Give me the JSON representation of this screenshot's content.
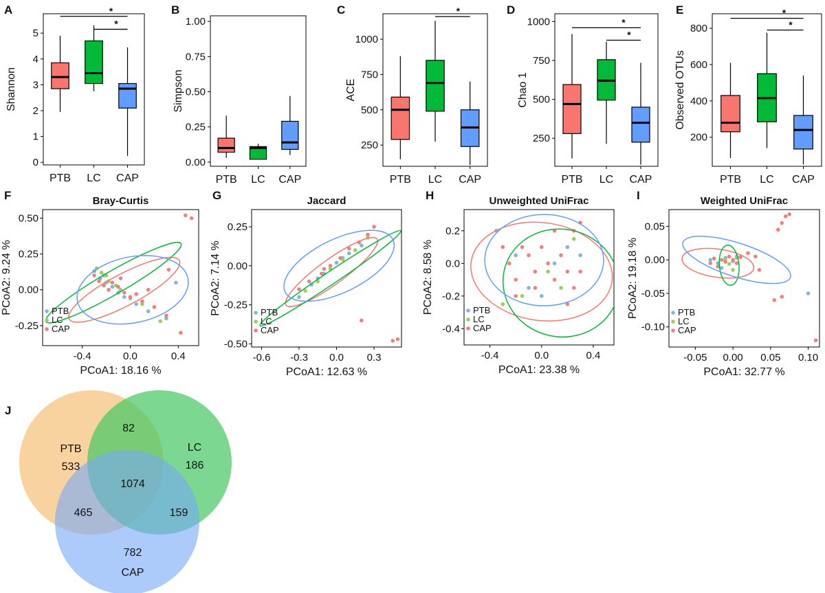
{
  "colors": {
    "PTB": "#f8766d",
    "LC": "#00ba38",
    "CAP": "#619cff",
    "PTB_point": "#7fb8d8",
    "LC_point": "#9ccf5a",
    "CAP_point": "#f08080",
    "venn_PTB": "#f6c888",
    "venn_LC": "#45c862",
    "venn_CAP": "#76a8f6"
  },
  "chart_data": [
    {
      "panel": "A",
      "type": "box",
      "title": "",
      "ylabel": "Shannon",
      "categories": [
        "PTB",
        "LC",
        "CAP"
      ],
      "ylim": [
        -0.1,
        5.75
      ],
      "yticks": [
        0,
        1,
        2,
        3,
        4,
        5
      ],
      "ytick_labels": [
        "0",
        "1",
        "2",
        "3",
        "4",
        "5"
      ],
      "boxes": [
        {
          "group": "PTB",
          "min": 1.95,
          "q1": 2.85,
          "median": 3.3,
          "q3": 3.85,
          "max": 4.9
        },
        {
          "group": "LC",
          "min": 2.75,
          "q1": 3.05,
          "median": 3.45,
          "q3": 4.7,
          "max": 5.3
        },
        {
          "group": "CAP",
          "min": 0.25,
          "q1": 2.1,
          "median": 2.85,
          "q3": 3.05,
          "max": 4.45
        }
      ],
      "significance": [
        {
          "from": "PTB",
          "to": "CAP",
          "label": "*",
          "y": 5.65
        },
        {
          "from": "LC",
          "to": "CAP",
          "label": "*",
          "y": 5.15
        }
      ]
    },
    {
      "panel": "B",
      "type": "box",
      "title": "",
      "ylabel": "Simpson",
      "categories": [
        "PTB",
        "LC",
        "CAP"
      ],
      "ylim": [
        -0.03,
        1.04
      ],
      "yticks": [
        0,
        0.25,
        0.5,
        0.75,
        1.0
      ],
      "ytick_labels": [
        "0.00",
        "0.25",
        "0.50",
        "0.75",
        "1.00"
      ],
      "boxes": [
        {
          "group": "PTB",
          "min": 0.03,
          "q1": 0.07,
          "median": 0.1,
          "q3": 0.17,
          "max": 0.33
        },
        {
          "group": "LC",
          "min": 0.02,
          "q1": 0.02,
          "median": 0.1,
          "q3": 0.11,
          "max": 0.13
        },
        {
          "group": "CAP",
          "min": 0.05,
          "q1": 0.09,
          "median": 0.14,
          "q3": 0.29,
          "max": 0.47
        }
      ],
      "significance": []
    },
    {
      "panel": "C",
      "type": "box",
      "title": "",
      "ylabel": "ACE",
      "categories": [
        "PTB",
        "LC",
        "CAP"
      ],
      "ylim": [
        100,
        1180
      ],
      "yticks": [
        250,
        500,
        750,
        1000
      ],
      "ytick_labels": [
        "250",
        "500",
        "750",
        "1000"
      ],
      "boxes": [
        {
          "group": "PTB",
          "min": 150,
          "q1": 290,
          "median": 500,
          "q3": 590,
          "max": 880
        },
        {
          "group": "LC",
          "min": 275,
          "q1": 490,
          "median": 690,
          "q3": 850,
          "max": 1130
        },
        {
          "group": "CAP",
          "min": 110,
          "q1": 240,
          "median": 375,
          "q3": 500,
          "max": 700
        }
      ],
      "significance": [
        {
          "from": "LC",
          "to": "CAP",
          "label": "*",
          "y": 1160
        }
      ]
    },
    {
      "panel": "D",
      "type": "box",
      "title": "",
      "ylabel": "Chao 1",
      "categories": [
        "PTB",
        "LC",
        "CAP"
      ],
      "ylim": [
        70,
        1050
      ],
      "yticks": [
        250,
        500,
        750,
        1000
      ],
      "ytick_labels": [
        "250",
        "500",
        "750",
        "1000"
      ],
      "boxes": [
        {
          "group": "PTB",
          "min": 120,
          "q1": 280,
          "median": 470,
          "q3": 595,
          "max": 920
        },
        {
          "group": "LC",
          "min": 215,
          "q1": 495,
          "median": 620,
          "q3": 755,
          "max": 870
        },
        {
          "group": "CAP",
          "min": 80,
          "q1": 225,
          "median": 350,
          "q3": 450,
          "max": 735
        }
      ],
      "significance": [
        {
          "from": "PTB",
          "to": "CAP",
          "label": "*",
          "y": 960
        },
        {
          "from": "LC",
          "to": "CAP",
          "label": "*",
          "y": 880
        }
      ]
    },
    {
      "panel": "E",
      "type": "box",
      "title": "",
      "ylabel": "Observed OTUs",
      "categories": [
        "PTB",
        "LC",
        "CAP"
      ],
      "ylim": [
        40,
        880
      ],
      "yticks": [
        200,
        400,
        600,
        800
      ],
      "ytick_labels": [
        "200",
        "400",
        "600",
        "800"
      ],
      "boxes": [
        {
          "group": "PTB",
          "min": 85,
          "q1": 230,
          "median": 280,
          "q3": 430,
          "max": 610
        },
        {
          "group": "LC",
          "min": 140,
          "q1": 285,
          "median": 415,
          "q3": 550,
          "max": 775
        },
        {
          "group": "CAP",
          "min": 50,
          "q1": 135,
          "median": 240,
          "q3": 320,
          "max": 540
        }
      ],
      "significance": [
        {
          "from": "PTB",
          "to": "CAP",
          "label": "*",
          "y": 855
        },
        {
          "from": "LC",
          "to": "CAP",
          "label": "*",
          "y": 790
        }
      ]
    },
    {
      "panel": "F",
      "type": "scatter",
      "title": "Bray-Curtis",
      "xlabel": "PCoA1:  18.16 %",
      "ylabel": "PCoA2:  9.24 %",
      "xlim": [
        -0.73,
        0.57
      ],
      "ylim": [
        -0.39,
        0.56
      ],
      "xticks": [
        -0.4,
        0,
        0.4
      ],
      "xtick_labels": [
        "-0.4",
        "0.0",
        "0.4"
      ],
      "yticks": [
        -0.25,
        0,
        0.25,
        0.5
      ],
      "ytick_labels": [
        "-0.25",
        "0.00",
        "0.25",
        "0.50"
      ],
      "legend": [
        "PTB",
        "LC",
        "CAP"
      ],
      "legend_position": "bottom-left",
      "ellipses": [
        {
          "group": "PTB",
          "cx": -0.05,
          "cy": 0.0,
          "rx": 0.52,
          "ry": 0.11,
          "angle": -28
        },
        {
          "group": "LC",
          "cx": -0.14,
          "cy": 0.05,
          "rx": 0.65,
          "ry": 0.08,
          "angle": -30
        },
        {
          "group": "CAP",
          "cx": 0.02,
          "cy": 0.0,
          "rx": 0.47,
          "ry": 0.23,
          "angle": -12
        }
      ],
      "points": [
        [
          -0.3,
          0.13,
          "PTB"
        ],
        [
          -0.25,
          0.08,
          "PTB"
        ],
        [
          -0.2,
          0.05,
          "PTB"
        ],
        [
          -0.15,
          0.02,
          "PTB"
        ],
        [
          -0.1,
          -0.02,
          "PTB"
        ],
        [
          -0.05,
          -0.05,
          "PTB"
        ],
        [
          0.05,
          -0.1,
          "PTB"
        ],
        [
          0.15,
          -0.15,
          "PTB"
        ],
        [
          0.3,
          -0.2,
          "PTB"
        ],
        [
          0.38,
          0.05,
          "PTB"
        ],
        [
          -0.22,
          0.1,
          "PTB"
        ],
        [
          -0.28,
          0.15,
          "LC"
        ],
        [
          -0.24,
          0.12,
          "LC"
        ],
        [
          -0.2,
          0.1,
          "LC"
        ],
        [
          -0.18,
          0.06,
          "LC"
        ],
        [
          -0.12,
          0.03,
          "LC"
        ],
        [
          -0.08,
          0.0,
          "LC"
        ],
        [
          0.0,
          -0.06,
          "LC"
        ],
        [
          0.1,
          -0.1,
          "LC"
        ],
        [
          0.25,
          -0.22,
          "LC"
        ],
        [
          -0.3,
          0.1,
          "CAP"
        ],
        [
          -0.26,
          0.06,
          "CAP"
        ],
        [
          -0.22,
          0.03,
          "CAP"
        ],
        [
          -0.18,
          0.0,
          "CAP"
        ],
        [
          -0.15,
          0.05,
          "CAP"
        ],
        [
          -0.1,
          0.02,
          "CAP"
        ],
        [
          -0.05,
          -0.02,
          "CAP"
        ],
        [
          0.0,
          -0.05,
          "CAP"
        ],
        [
          0.05,
          -0.03,
          "CAP"
        ],
        [
          0.1,
          -0.08,
          "CAP"
        ],
        [
          0.2,
          -0.12,
          "CAP"
        ],
        [
          0.3,
          -0.18,
          "CAP"
        ],
        [
          0.46,
          0.52,
          "CAP"
        ],
        [
          0.51,
          0.5,
          "CAP"
        ],
        [
          0.32,
          0.14,
          "CAP"
        ],
        [
          0.42,
          -0.3,
          "CAP"
        ],
        [
          0.15,
          0.0,
          "CAP"
        ],
        [
          -0.08,
          0.08,
          "CAP"
        ]
      ]
    },
    {
      "panel": "G",
      "type": "scatter",
      "title": "Jaccard",
      "xlabel": "PCoA1:  12.63 %",
      "ylabel": "PCoA2:  7.14 %",
      "xlim": [
        -0.68,
        0.52
      ],
      "ylim": [
        -0.52,
        0.36
      ],
      "xticks": [
        -0.6,
        -0.3,
        0,
        0.3
      ],
      "xtick_labels": [
        "-0.6",
        "-0.3",
        "0.0",
        "0.3"
      ],
      "yticks": [
        -0.5,
        -0.25,
        0,
        0.25
      ],
      "ytick_labels": [
        "-0.50",
        "-0.25",
        "0.00",
        "0.25"
      ],
      "legend": [
        "PTB",
        "LC",
        "CAP"
      ],
      "legend_position": "bottom-left",
      "ellipses": [
        {
          "group": "PTB",
          "cx": -0.04,
          "cy": -0.04,
          "rx": 0.45,
          "ry": 0.08,
          "angle": -36
        },
        {
          "group": "LC",
          "cx": -0.05,
          "cy": -0.08,
          "rx": 0.68,
          "ry": 0.04,
          "angle": -34
        },
        {
          "group": "CAP",
          "cx": 0.02,
          "cy": 0.0,
          "rx": 0.48,
          "ry": 0.17,
          "angle": -26
        }
      ],
      "points": [
        [
          -0.3,
          -0.2,
          "PTB"
        ],
        [
          -0.2,
          -0.12,
          "PTB"
        ],
        [
          -0.1,
          -0.05,
          "PTB"
        ],
        [
          0.0,
          0.02,
          "PTB"
        ],
        [
          0.1,
          0.08,
          "PTB"
        ],
        [
          0.2,
          0.13,
          "PTB"
        ],
        [
          -0.15,
          -0.08,
          "PTB"
        ],
        [
          0.05,
          0.05,
          "PTB"
        ],
        [
          -0.25,
          -0.16,
          "LC"
        ],
        [
          -0.15,
          -0.1,
          "LC"
        ],
        [
          -0.05,
          -0.02,
          "LC"
        ],
        [
          0.05,
          0.04,
          "LC"
        ],
        [
          0.15,
          0.1,
          "LC"
        ],
        [
          0.25,
          0.18,
          "LC"
        ],
        [
          -0.3,
          -0.15,
          "CAP"
        ],
        [
          -0.22,
          -0.1,
          "CAP"
        ],
        [
          -0.12,
          -0.05,
          "CAP"
        ],
        [
          -0.05,
          0.0,
          "CAP"
        ],
        [
          0.03,
          0.05,
          "CAP"
        ],
        [
          0.1,
          0.11,
          "CAP"
        ],
        [
          0.18,
          0.15,
          "CAP"
        ],
        [
          0.25,
          0.2,
          "CAP"
        ],
        [
          0.3,
          0.25,
          "CAP"
        ],
        [
          0.2,
          -0.35,
          "CAP"
        ],
        [
          0.45,
          -0.48,
          "CAP"
        ],
        [
          0.49,
          -0.47,
          "CAP"
        ],
        [
          -0.1,
          -0.02,
          "CAP"
        ]
      ]
    },
    {
      "panel": "H",
      "type": "scatter",
      "title": "Unweighted UniFrac",
      "xlabel": "PCoA1:  23.38 %",
      "ylabel": "PCoA2:  8.58 %",
      "xlim": [
        -0.6,
        0.56
      ],
      "ylim": [
        -0.5,
        0.33
      ],
      "xticks": [
        -0.4,
        0,
        0.4
      ],
      "xtick_labels": [
        "-0.4",
        "0.0",
        "0.4"
      ],
      "yticks": [
        -0.4,
        -0.2,
        0,
        0.2
      ],
      "ytick_labels": [
        "-0.4",
        "-0.2",
        "0.0",
        "0.2"
      ],
      "legend": [
        "PTB",
        "LC",
        "CAP"
      ],
      "legend_position": "bottom-left",
      "ellipses": [
        {
          "group": "PTB",
          "cx": 0.0,
          "cy": -0.05,
          "rx": 0.55,
          "ry": 0.3,
          "angle": 8
        },
        {
          "group": "LC",
          "cx": 0.15,
          "cy": -0.12,
          "rx": 0.45,
          "ry": 0.33,
          "angle": 12
        },
        {
          "group": "CAP",
          "cx": 0.02,
          "cy": 0.02,
          "rx": 0.46,
          "ry": 0.28,
          "angle": 0
        }
      ],
      "points": [
        [
          -0.35,
          0.2,
          "PTB"
        ],
        [
          -0.2,
          0.05,
          "PTB"
        ],
        [
          0.1,
          0.0,
          "PTB"
        ],
        [
          0.2,
          0.1,
          "PTB"
        ],
        [
          -0.1,
          -0.15,
          "PTB"
        ],
        [
          0.0,
          -0.2,
          "PTB"
        ],
        [
          0.3,
          0.05,
          "PTB"
        ],
        [
          -0.3,
          -0.25,
          "LC"
        ],
        [
          -0.15,
          -0.2,
          "LC"
        ],
        [
          0.05,
          -0.05,
          "LC"
        ],
        [
          0.15,
          -0.15,
          "LC"
        ],
        [
          0.25,
          0.15,
          "LC"
        ],
        [
          -0.3,
          0.1,
          "CAP"
        ],
        [
          -0.25,
          0.0,
          "CAP"
        ],
        [
          -0.2,
          -0.1,
          "CAP"
        ],
        [
          -0.15,
          0.1,
          "CAP"
        ],
        [
          -0.1,
          0.05,
          "CAP"
        ],
        [
          -0.05,
          -0.05,
          "CAP"
        ],
        [
          0.0,
          0.1,
          "CAP"
        ],
        [
          0.05,
          0.0,
          "CAP"
        ],
        [
          0.1,
          -0.1,
          "CAP"
        ],
        [
          0.15,
          0.05,
          "CAP"
        ],
        [
          0.2,
          -0.05,
          "CAP"
        ],
        [
          0.25,
          0.2,
          "CAP"
        ],
        [
          0.25,
          -0.15,
          "CAP"
        ],
        [
          0.3,
          0.25,
          "CAP"
        ],
        [
          0.3,
          -0.05,
          "CAP"
        ],
        [
          0.2,
          -0.25,
          "CAP"
        ],
        [
          -0.2,
          -0.2,
          "CAP"
        ],
        [
          0.1,
          0.2,
          "CAP"
        ],
        [
          -0.05,
          -0.15,
          "CAP"
        ]
      ]
    },
    {
      "panel": "I",
      "type": "scatter",
      "title": "Weighted UniFrac",
      "xlabel": "PCoA1:  32.77 %",
      "ylabel": "PCoA2:  19.18 %",
      "xlim": [
        -0.085,
        0.115
      ],
      "ylim": [
        -0.13,
        0.075
      ],
      "xticks": [
        -0.05,
        0,
        0.05,
        0.1
      ],
      "xtick_labels": [
        "-0.05",
        "0.00",
        "0.05",
        "0.10"
      ],
      "yticks": [
        -0.1,
        -0.05,
        0,
        0.05
      ],
      "ytick_labels": [
        "-0.10",
        "-0.05",
        "0.00",
        "0.05"
      ],
      "legend": [
        "PTB",
        "LC",
        "CAP"
      ],
      "legend_position": "bottom-left",
      "ellipses": [
        {
          "group": "PTB",
          "cx": -0.02,
          "cy": -0.005,
          "rx": 0.048,
          "ry": 0.021,
          "angle": 8
        },
        {
          "group": "LC",
          "cx": -0.005,
          "cy": -0.008,
          "rx": 0.013,
          "ry": 0.03,
          "angle": -5
        },
        {
          "group": "CAP",
          "cx": 0.005,
          "cy": 0.0,
          "rx": 0.075,
          "ry": 0.025,
          "angle": 18
        }
      ],
      "points": [
        [
          -0.03,
          0.0,
          "PTB"
        ],
        [
          -0.02,
          -0.005,
          "PTB"
        ],
        [
          -0.01,
          0.003,
          "PTB"
        ],
        [
          0.0,
          -0.002,
          "PTB"
        ],
        [
          0.005,
          0.005,
          "PTB"
        ],
        [
          -0.015,
          -0.012,
          "PTB"
        ],
        [
          0.1,
          -0.05,
          "PTB"
        ],
        [
          -0.01,
          0.0,
          "LC"
        ],
        [
          0.0,
          -0.015,
          "LC"
        ],
        [
          0.005,
          0.003,
          "LC"
        ],
        [
          -0.005,
          -0.006,
          "LC"
        ],
        [
          -0.03,
          -0.005,
          "CAP"
        ],
        [
          -0.025,
          0.002,
          "CAP"
        ],
        [
          -0.02,
          -0.01,
          "CAP"
        ],
        [
          -0.015,
          0.0,
          "CAP"
        ],
        [
          -0.01,
          -0.003,
          "CAP"
        ],
        [
          -0.005,
          0.005,
          "CAP"
        ],
        [
          0.0,
          0.0,
          "CAP"
        ],
        [
          0.005,
          -0.005,
          "CAP"
        ],
        [
          0.01,
          0.004,
          "CAP"
        ],
        [
          0.02,
          0.01,
          "CAP"
        ],
        [
          0.03,
          0.005,
          "CAP"
        ],
        [
          0.065,
          0.055,
          "CAP"
        ],
        [
          0.07,
          0.065,
          "CAP"
        ],
        [
          0.075,
          0.068,
          "CAP"
        ],
        [
          0.06,
          0.045,
          "CAP"
        ],
        [
          0.055,
          -0.06,
          "CAP"
        ],
        [
          0.065,
          -0.055,
          "CAP"
        ],
        [
          0.11,
          -0.12,
          "CAP"
        ],
        [
          0.035,
          -0.015,
          "CAP"
        ]
      ]
    },
    {
      "panel": "J",
      "type": "venn",
      "title": "",
      "sets": [
        "PTB",
        "LC",
        "CAP"
      ],
      "regions": {
        "PTB_only": 533,
        "LC_only": 186,
        "CAP_only": 782,
        "PTB_LC": 82,
        "PTB_CAP": 465,
        "LC_CAP": 159,
        "all": 1074
      }
    }
  ]
}
